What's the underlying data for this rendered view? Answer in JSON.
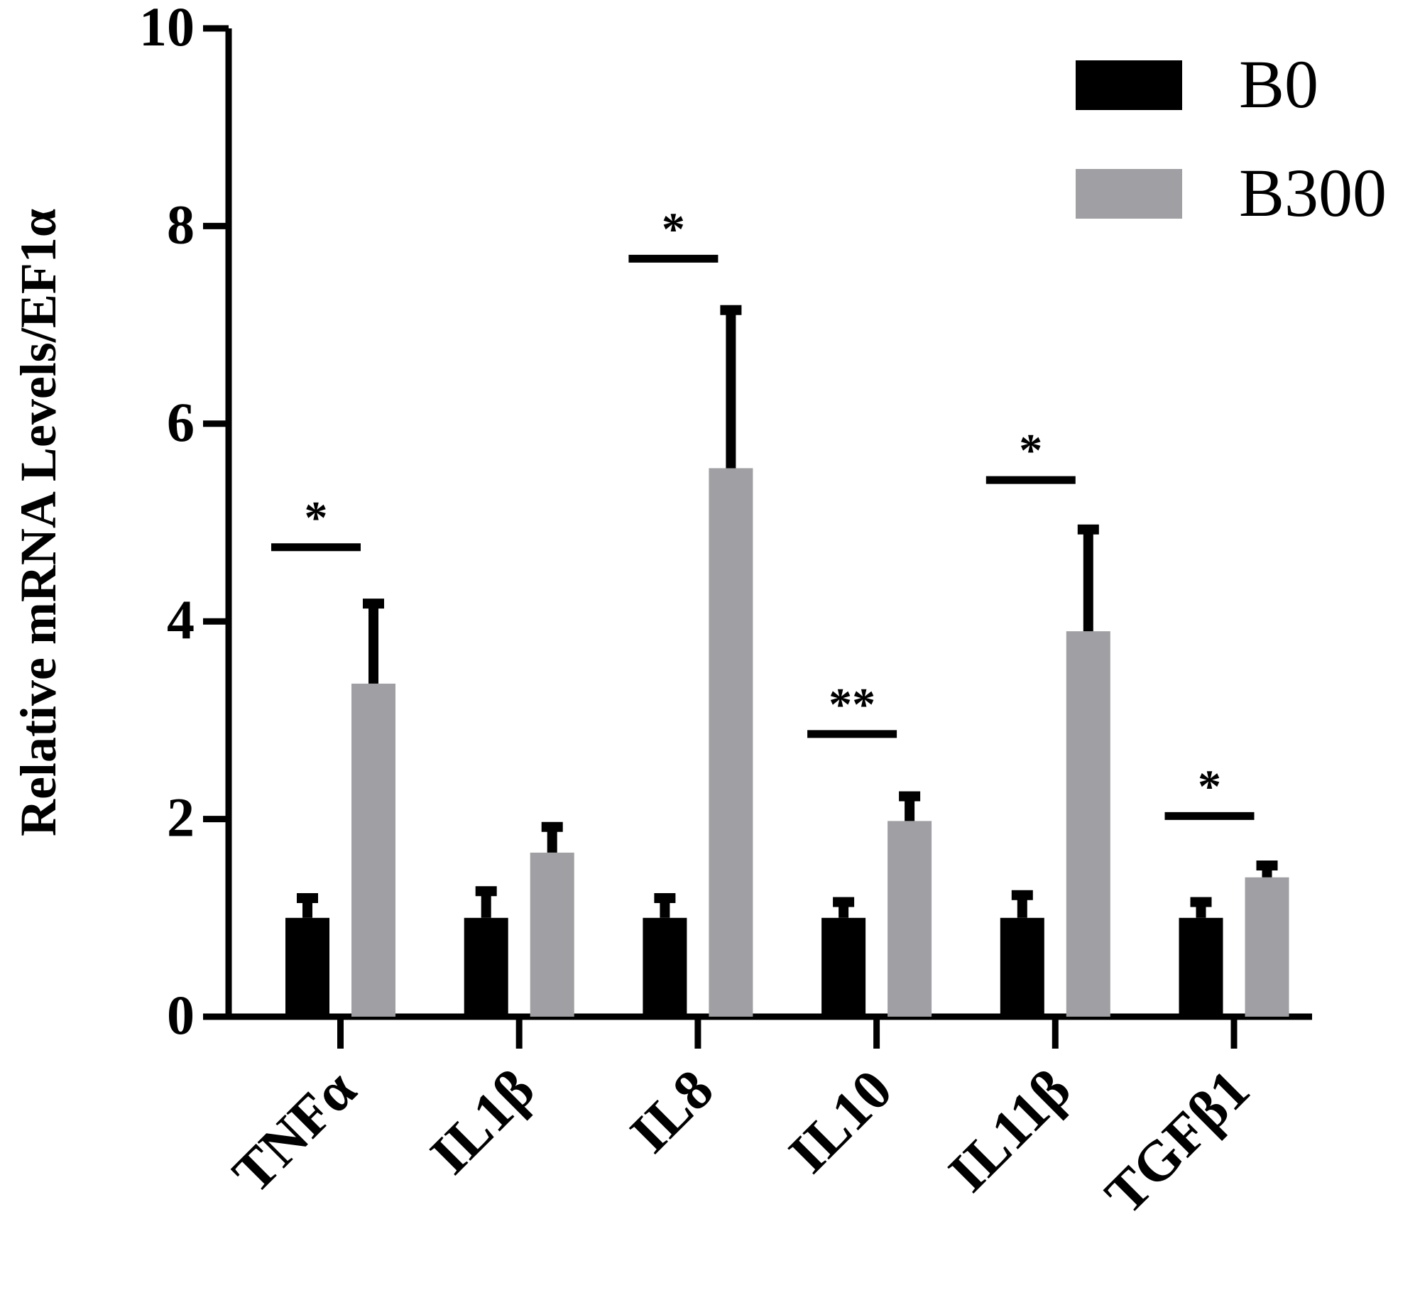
{
  "chart_data": {
    "type": "bar",
    "title": "",
    "xlabel": "",
    "ylabel": "Relative mRNA Levels/EF1α",
    "ylim": [
      0,
      10
    ],
    "yticks": [
      0,
      2,
      4,
      6,
      8,
      10
    ],
    "categories": [
      "TNFα",
      "IL1β",
      "IL8",
      "IL10",
      "IL11β",
      "TGFβ1"
    ],
    "series": [
      {
        "name": "B0",
        "color": "#000000",
        "values": [
          1.0,
          1.0,
          1.0,
          1.0,
          1.0,
          1.0
        ],
        "errors": [
          0.2,
          0.27,
          0.2,
          0.16,
          0.23,
          0.16
        ]
      },
      {
        "name": "B300",
        "color": "#a0a0a4",
        "values": [
          3.37,
          1.66,
          5.55,
          1.98,
          3.9,
          1.41
        ],
        "errors": [
          0.81,
          0.26,
          1.6,
          0.25,
          1.03,
          0.12
        ]
      }
    ],
    "significance": [
      {
        "category": "TNFα",
        "label": "*",
        "y": 4.75
      },
      {
        "category": "IL8",
        "label": "*",
        "y": 7.67
      },
      {
        "category": "IL10",
        "label": "**",
        "y": 2.86
      },
      {
        "category": "IL11β",
        "label": "*",
        "y": 5.43
      },
      {
        "category": "TGFβ1",
        "label": "*",
        "y": 2.03
      }
    ],
    "legend": {
      "position": "top-right",
      "entries": [
        "B0",
        "B300"
      ]
    },
    "grid": false
  }
}
